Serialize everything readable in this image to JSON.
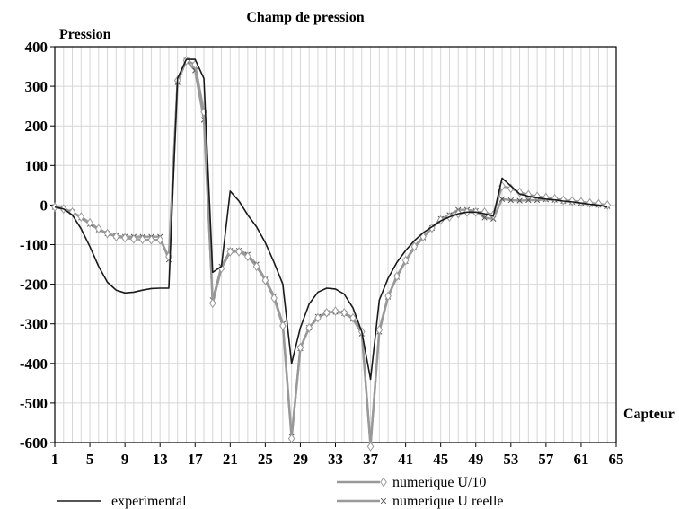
{
  "chart_data": {
    "type": "line",
    "title": "Champ de pression",
    "xlabel": "Capteur",
    "ylabel": "Pression",
    "xlim": [
      1,
      65
    ],
    "ylim": [
      -600,
      400
    ],
    "xticks": [
      1,
      5,
      9,
      13,
      17,
      21,
      25,
      29,
      33,
      37,
      41,
      45,
      49,
      53,
      57,
      61,
      65
    ],
    "yticks": [
      400,
      300,
      200,
      100,
      0,
      -100,
      -200,
      -300,
      -400,
      -500,
      -600
    ],
    "grid": true,
    "legend_position": "bottom",
    "x": [
      1,
      2,
      3,
      4,
      5,
      6,
      7,
      8,
      9,
      10,
      11,
      12,
      13,
      14,
      15,
      16,
      17,
      18,
      19,
      20,
      21,
      22,
      23,
      24,
      25,
      26,
      27,
      28,
      29,
      30,
      31,
      32,
      33,
      34,
      35,
      36,
      37,
      38,
      39,
      40,
      41,
      42,
      43,
      44,
      45,
      46,
      47,
      48,
      49,
      50,
      51,
      52,
      53,
      54,
      55,
      56,
      57,
      58,
      59,
      60,
      61,
      62,
      63,
      64
    ],
    "series": [
      {
        "name": "experimental",
        "color": "#1a1a1a",
        "marker": "none",
        "values": [
          -5,
          -10,
          -25,
          -60,
          -105,
          -155,
          -195,
          -215,
          -222,
          -220,
          -215,
          -211,
          -210,
          -210,
          320,
          368,
          368,
          320,
          -170,
          -155,
          35,
          10,
          -25,
          -55,
          -95,
          -145,
          -200,
          -400,
          -310,
          -250,
          -220,
          -210,
          -212,
          -225,
          -260,
          -320,
          -440,
          -240,
          -185,
          -145,
          -115,
          -90,
          -70,
          -55,
          -40,
          -30,
          -22,
          -18,
          -18,
          -22,
          -28,
          68,
          48,
          28,
          22,
          18,
          15,
          13,
          10,
          8,
          5,
          2,
          0,
          -5
        ]
      },
      {
        "name": "numerique U/10",
        "color": "#999999",
        "marker": "diamond",
        "values": [
          -5,
          -10,
          -18,
          -30,
          -45,
          -60,
          -72,
          -80,
          -83,
          -86,
          -87,
          -88,
          -88,
          -130,
          315,
          365,
          355,
          235,
          -248,
          -160,
          -118,
          -118,
          -130,
          -155,
          -190,
          -235,
          -305,
          -590,
          -360,
          -310,
          -285,
          -272,
          -268,
          -272,
          -285,
          -320,
          -610,
          -315,
          -230,
          -180,
          -140,
          -105,
          -80,
          -58,
          -38,
          -30,
          -22,
          -18,
          -18,
          -18,
          -25,
          48,
          42,
          32,
          26,
          22,
          19,
          16,
          12,
          10,
          8,
          5,
          3,
          0
        ]
      },
      {
        "name": "numerique U reelle",
        "color": "#999999",
        "marker": "x",
        "values": [
          -5,
          -8,
          -18,
          -32,
          -48,
          -62,
          -72,
          -78,
          -80,
          -80,
          -80,
          -80,
          -80,
          -138,
          310,
          365,
          340,
          215,
          -240,
          -155,
          -115,
          -115,
          -125,
          -150,
          -188,
          -230,
          -300,
          -585,
          -362,
          -310,
          -282,
          -272,
          -270,
          -273,
          -288,
          -325,
          -605,
          -320,
          -232,
          -182,
          -142,
          -108,
          -82,
          -58,
          -35,
          -25,
          -12,
          -12,
          -15,
          -32,
          -35,
          15,
          12,
          11,
          12,
          12,
          14,
          13,
          10,
          8,
          5,
          2,
          0,
          -3
        ]
      }
    ]
  }
}
